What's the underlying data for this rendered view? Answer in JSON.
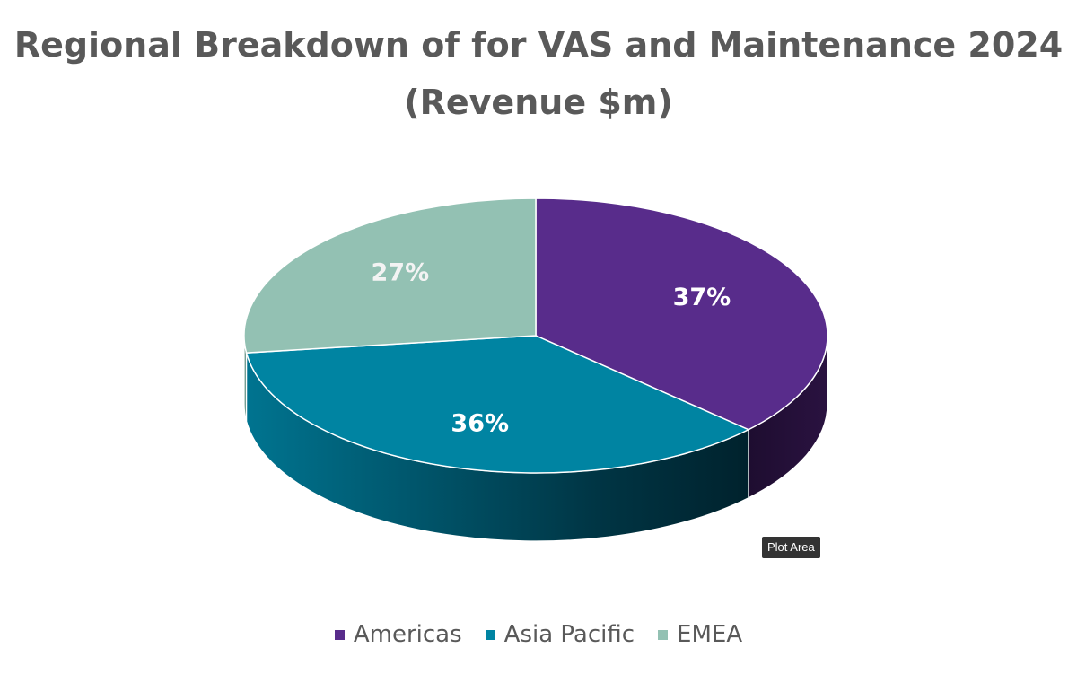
{
  "chart_data": {
    "type": "pie",
    "title": "Regional Breakdown of for VAS and Maintenance 2024",
    "subtitle": "(Revenue $m)",
    "categories": [
      "Americas",
      "Asia Pacific",
      "EMEA"
    ],
    "values": [
      37,
      36,
      27
    ],
    "data_labels": [
      "37%",
      "36%",
      "27%"
    ],
    "colors": [
      "#582C8B",
      "#0084A2",
      "#93C1B3"
    ],
    "legend_position": "bottom",
    "style": "3d"
  },
  "tooltip": {
    "text": "Plot Area"
  }
}
